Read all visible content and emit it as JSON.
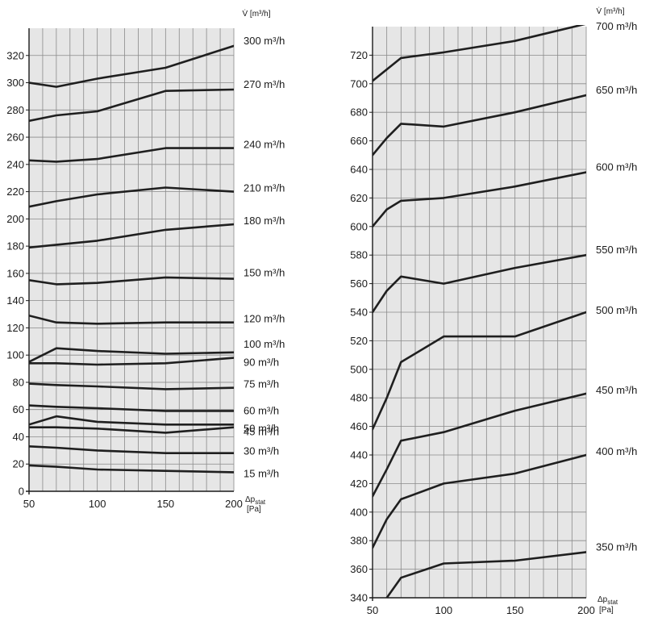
{
  "chart_data": [
    {
      "type": "line",
      "ylabel": "V̇ [m³/h]",
      "xlabel": "Δp",
      "xlabel_sub": "stat",
      "xunit": "[Pa]",
      "xlim": [
        50,
        200
      ],
      "ylim": [
        0,
        340
      ],
      "xticks": [
        50,
        100,
        150,
        200
      ],
      "yticks": [
        0,
        20,
        40,
        60,
        80,
        100,
        120,
        140,
        160,
        180,
        200,
        220,
        240,
        260,
        280,
        300,
        320
      ],
      "grid": true,
      "series": [
        {
          "name": "300 m³/h",
          "x": [
            50,
            70,
            100,
            150,
            200
          ],
          "y": [
            300,
            297,
            303,
            311,
            327
          ]
        },
        {
          "name": "270 m³/h",
          "x": [
            50,
            70,
            100,
            150,
            200
          ],
          "y": [
            272,
            276,
            279,
            294,
            295
          ]
        },
        {
          "name": "240 m³/h",
          "x": [
            50,
            70,
            100,
            150,
            200
          ],
          "y": [
            243,
            242,
            244,
            252,
            252
          ]
        },
        {
          "name": "210 m³/h",
          "x": [
            50,
            70,
            100,
            150,
            200
          ],
          "y": [
            209,
            213,
            218,
            223,
            220
          ]
        },
        {
          "name": "180 m³/h",
          "x": [
            50,
            70,
            100,
            150,
            200
          ],
          "y": [
            179,
            181,
            184,
            192,
            196
          ]
        },
        {
          "name": "150 m³/h",
          "x": [
            50,
            70,
            100,
            150,
            200
          ],
          "y": [
            155,
            152,
            153,
            157,
            156
          ]
        },
        {
          "name": "120 m³/h",
          "x": [
            50,
            70,
            100,
            150,
            200
          ],
          "y": [
            129,
            124,
            123,
            124,
            124
          ]
        },
        {
          "name": "100 m³/h",
          "x": [
            50,
            70,
            100,
            150,
            200
          ],
          "y": [
            95,
            105,
            103,
            101,
            102
          ]
        },
        {
          "name": "90 m³/h",
          "x": [
            50,
            70,
            100,
            150,
            200
          ],
          "y": [
            94,
            94,
            93,
            94,
            98
          ]
        },
        {
          "name": "75 m³/h",
          "x": [
            50,
            70,
            100,
            150,
            200
          ],
          "y": [
            79,
            78,
            77,
            75,
            76
          ]
        },
        {
          "name": "60 m³/h",
          "x": [
            50,
            70,
            100,
            150,
            200
          ],
          "y": [
            63,
            62,
            61,
            59,
            59
          ]
        },
        {
          "name": "50 m³/h",
          "x": [
            50,
            70,
            100,
            150,
            200
          ],
          "y": [
            49,
            55,
            51,
            49,
            49
          ]
        },
        {
          "name": "45 m³/h",
          "x": [
            50,
            70,
            100,
            150,
            200
          ],
          "y": [
            47,
            47,
            46,
            43,
            47
          ]
        },
        {
          "name": "30 m³/h",
          "x": [
            50,
            70,
            100,
            150,
            200
          ],
          "y": [
            33,
            32,
            30,
            28,
            28
          ]
        },
        {
          "name": "15 m³/h",
          "x": [
            50,
            70,
            100,
            150,
            200
          ],
          "y": [
            19,
            18,
            16,
            15,
            14
          ]
        }
      ]
    },
    {
      "type": "line",
      "ylabel": "V̇ [m³/h]",
      "xlabel": "Δp",
      "xlabel_sub": "stat",
      "xunit": "[Pa]",
      "xlim": [
        50,
        200
      ],
      "ylim": [
        340,
        740
      ],
      "xticks": [
        50,
        100,
        150,
        200
      ],
      "yticks": [
        340,
        360,
        380,
        400,
        420,
        440,
        460,
        480,
        500,
        520,
        540,
        560,
        580,
        600,
        620,
        640,
        660,
        680,
        700,
        720
      ],
      "grid": true,
      "series": [
        {
          "name": "700 m³/h",
          "x": [
            50,
            70,
            100,
            150,
            200
          ],
          "y": [
            702,
            718,
            722,
            730,
            742
          ]
        },
        {
          "name": "650 m³/h",
          "x": [
            50,
            60,
            70,
            100,
            150,
            200
          ],
          "y": [
            650,
            662,
            672,
            670,
            680,
            692
          ]
        },
        {
          "name": "600 m³/h",
          "x": [
            50,
            60,
            70,
            100,
            150,
            200
          ],
          "y": [
            600,
            612,
            618,
            620,
            628,
            638
          ]
        },
        {
          "name": "550 m³/h",
          "x": [
            50,
            60,
            70,
            100,
            150,
            200
          ],
          "y": [
            540,
            555,
            565,
            560,
            571,
            580
          ]
        },
        {
          "name": "500 m³/h",
          "x": [
            50,
            60,
            70,
            100,
            150,
            200
          ],
          "y": [
            458,
            480,
            505,
            523,
            523,
            540
          ]
        },
        {
          "name": "450 m³/h",
          "x": [
            50,
            60,
            70,
            100,
            150,
            200
          ],
          "y": [
            411,
            430,
            450,
            456,
            471,
            483
          ]
        },
        {
          "name": "400 m³/h",
          "x": [
            50,
            60,
            70,
            100,
            150,
            200
          ],
          "y": [
            375,
            395,
            409,
            420,
            427,
            440
          ]
        },
        {
          "name": "350 m³/h",
          "x": [
            60,
            70,
            100,
            150,
            200
          ],
          "y": [
            340,
            354,
            364,
            366,
            372
          ]
        }
      ]
    }
  ]
}
